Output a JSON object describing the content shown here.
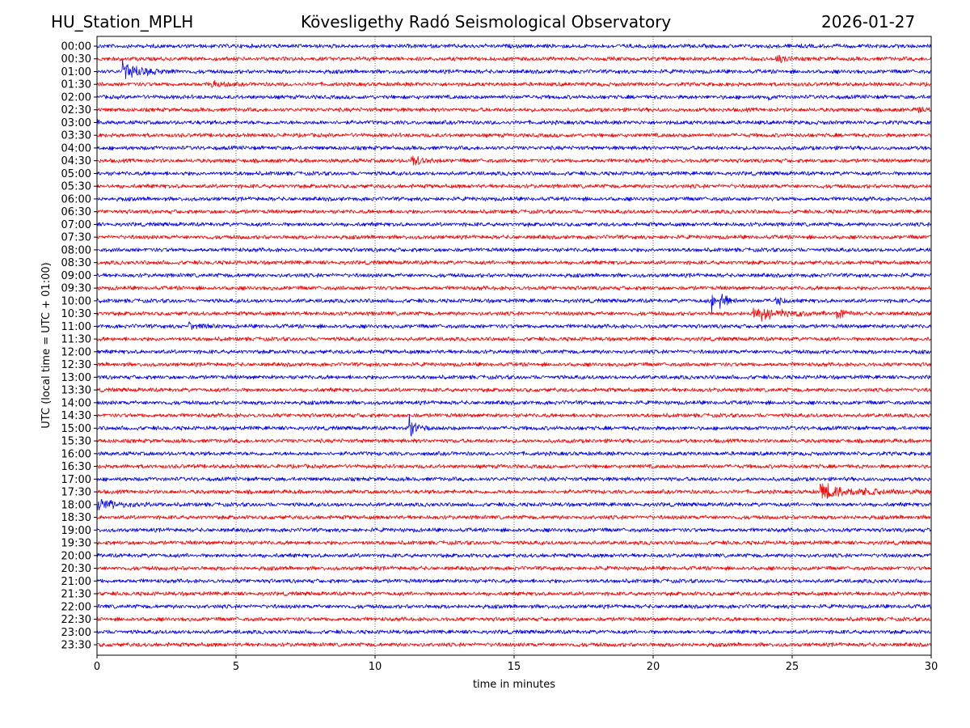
{
  "header": {
    "station": "HU_Station_MPLH",
    "observatory": "Kövesligethy Radó Seismological Observatory",
    "date": "2026-01-27"
  },
  "chart_data": {
    "type": "line",
    "title": "Kövesligethy Radó Seismological Observatory",
    "xlabel": "time in minutes",
    "ylabel": "UTC (local time = UTC + 01:00)",
    "xlim": [
      0,
      30
    ],
    "x_ticks": [
      0,
      5,
      10,
      15,
      20,
      25,
      30
    ],
    "grid": "vertical dotted at x ticks",
    "colors": [
      "#0000ff",
      "#ff0000"
    ],
    "row_labels": [
      "00:00",
      "00:30",
      "01:00",
      "01:30",
      "02:00",
      "02:30",
      "03:00",
      "03:30",
      "04:00",
      "04:30",
      "05:00",
      "05:30",
      "06:00",
      "06:30",
      "07:00",
      "07:30",
      "08:00",
      "08:30",
      "09:00",
      "09:30",
      "10:00",
      "10:30",
      "11:00",
      "11:30",
      "12:00",
      "12:30",
      "13:00",
      "13:30",
      "14:00",
      "14:30",
      "15:00",
      "15:30",
      "16:00",
      "16:30",
      "17:00",
      "17:30",
      "18:00",
      "18:30",
      "19:00",
      "19:30",
      "20:00",
      "20:30",
      "21:00",
      "21:30",
      "22:00",
      "22:30",
      "23:00",
      "23:30"
    ],
    "noise_level": 0.14,
    "events": [
      {
        "row": "00:30",
        "start_min": 24.4,
        "duration_min": 0.7,
        "amplitude": 0.5
      },
      {
        "row": "01:00",
        "start_min": 0.9,
        "duration_min": 1.6,
        "amplitude": 1.1
      },
      {
        "row": "01:30",
        "start_min": 4.1,
        "duration_min": 0.7,
        "amplitude": 0.5
      },
      {
        "row": "02:00",
        "start_min": 24.1,
        "duration_min": 0.2,
        "amplitude": 0.45
      },
      {
        "row": "02:30",
        "start_min": 29.5,
        "duration_min": 0.5,
        "amplitude": 0.4
      },
      {
        "row": "03:00",
        "start_min": 0.0,
        "duration_min": 0.3,
        "amplitude": 0.35
      },
      {
        "row": "04:30",
        "start_min": 11.3,
        "duration_min": 0.9,
        "amplitude": 0.6
      },
      {
        "row": "10:00",
        "start_min": 22.1,
        "duration_min": 0.2,
        "amplitude": 1.2
      },
      {
        "row": "10:00",
        "start_min": 22.4,
        "duration_min": 0.5,
        "amplitude": 1.5
      },
      {
        "row": "10:00",
        "start_min": 24.4,
        "duration_min": 0.6,
        "amplitude": 0.6
      },
      {
        "row": "10:30",
        "start_min": 23.6,
        "duration_min": 2.8,
        "amplitude": 0.65
      },
      {
        "row": "10:30",
        "start_min": 26.6,
        "duration_min": 0.6,
        "amplitude": 0.5
      },
      {
        "row": "11:00",
        "start_min": 3.3,
        "duration_min": 1.0,
        "amplitude": 0.3
      },
      {
        "row": "15:00",
        "start_min": 11.2,
        "duration_min": 0.6,
        "amplitude": 1.5
      },
      {
        "row": "17:30",
        "start_min": 26.0,
        "duration_min": 4.0,
        "amplitude": 0.7
      },
      {
        "row": "18:00",
        "start_min": 0.0,
        "duration_min": 2.0,
        "amplitude": 0.5
      }
    ]
  }
}
